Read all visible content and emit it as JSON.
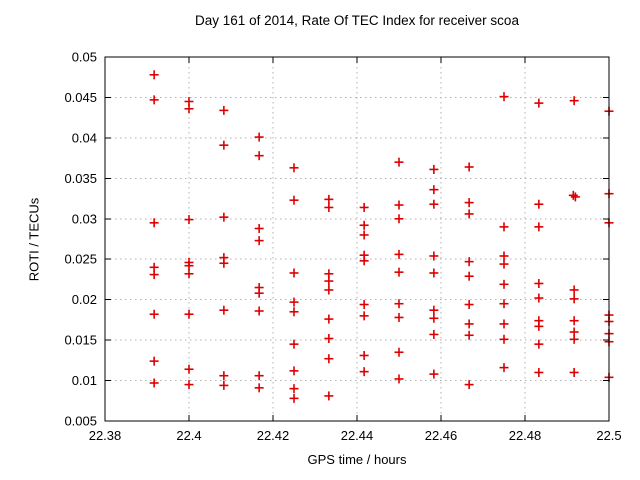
{
  "chart_data": {
    "type": "scatter",
    "title": "Day 161 of 2014, Rate Of TEC Index for receiver scoa",
    "xlabel": "GPS time / hours",
    "ylabel": "ROTI / TECUs",
    "xlim": [
      22.38,
      22.5
    ],
    "ylim": [
      0.005,
      0.05
    ],
    "xticks": [
      22.38,
      22.4,
      22.42,
      22.44,
      22.46,
      22.48,
      22.5
    ],
    "xtick_labels": [
      "22.38",
      "22.4",
      "22.42",
      "22.44",
      "22.46",
      "22.48",
      "22.5"
    ],
    "yticks": [
      0.005,
      0.01,
      0.015,
      0.02,
      0.025,
      0.03,
      0.035,
      0.04,
      0.045,
      0.05
    ],
    "ytick_labels": [
      "0.005",
      "0.01",
      "0.015",
      "0.02",
      "0.025",
      "0.03",
      "0.035",
      "0.04",
      "0.045",
      "0.05"
    ],
    "grid": true,
    "legend": "none",
    "marker": "plus",
    "marker_color": "#dd0000",
    "grid_color": "#b0b0b0",
    "border_color": "#000000",
    "series": [
      {
        "name": "ROTI",
        "points": [
          [
            22.3917,
            0.0478
          ],
          [
            22.3917,
            0.0447
          ],
          [
            22.3917,
            0.0295
          ],
          [
            22.3917,
            0.024
          ],
          [
            22.3917,
            0.0231
          ],
          [
            22.3917,
            0.0182
          ],
          [
            22.3917,
            0.0124
          ],
          [
            22.3917,
            0.0097
          ],
          [
            22.4,
            0.0445
          ],
          [
            22.4,
            0.0436
          ],
          [
            22.4,
            0.0299
          ],
          [
            22.4,
            0.0246
          ],
          [
            22.4,
            0.0242
          ],
          [
            22.4,
            0.0232
          ],
          [
            22.4,
            0.0182
          ],
          [
            22.4,
            0.0114
          ],
          [
            22.4,
            0.0095
          ],
          [
            22.4083,
            0.0434
          ],
          [
            22.4083,
            0.0391
          ],
          [
            22.4083,
            0.0302
          ],
          [
            22.4083,
            0.0252
          ],
          [
            22.4083,
            0.0245
          ],
          [
            22.4083,
            0.0187
          ],
          [
            22.4083,
            0.0106
          ],
          [
            22.4083,
            0.0094
          ],
          [
            22.4167,
            0.0401
          ],
          [
            22.4167,
            0.0378
          ],
          [
            22.4167,
            0.0288
          ],
          [
            22.4167,
            0.0273
          ],
          [
            22.4167,
            0.0215
          ],
          [
            22.4167,
            0.0208
          ],
          [
            22.4167,
            0.0186
          ],
          [
            22.4167,
            0.0106
          ],
          [
            22.4167,
            0.0091
          ],
          [
            22.425,
            0.0363
          ],
          [
            22.425,
            0.0323
          ],
          [
            22.425,
            0.0233
          ],
          [
            22.425,
            0.0197
          ],
          [
            22.425,
            0.0185
          ],
          [
            22.425,
            0.0145
          ],
          [
            22.425,
            0.0112
          ],
          [
            22.425,
            0.009
          ],
          [
            22.425,
            0.0078
          ],
          [
            22.4333,
            0.0324
          ],
          [
            22.4333,
            0.0314
          ],
          [
            22.4333,
            0.0232
          ],
          [
            22.4333,
            0.0223
          ],
          [
            22.4333,
            0.0212
          ],
          [
            22.4333,
            0.0176
          ],
          [
            22.4333,
            0.0152
          ],
          [
            22.4333,
            0.0127
          ],
          [
            22.4333,
            0.0081
          ],
          [
            22.4417,
            0.0314
          ],
          [
            22.4417,
            0.0292
          ],
          [
            22.4417,
            0.028
          ],
          [
            22.4417,
            0.0255
          ],
          [
            22.4417,
            0.0248
          ],
          [
            22.4417,
            0.0194
          ],
          [
            22.4417,
            0.018
          ],
          [
            22.4417,
            0.0131
          ],
          [
            22.4417,
            0.0111
          ],
          [
            22.45,
            0.037
          ],
          [
            22.45,
            0.0317
          ],
          [
            22.45,
            0.03
          ],
          [
            22.45,
            0.0256
          ],
          [
            22.45,
            0.0234
          ],
          [
            22.45,
            0.0195
          ],
          [
            22.45,
            0.0178
          ],
          [
            22.45,
            0.0135
          ],
          [
            22.45,
            0.0102
          ],
          [
            22.4583,
            0.0361
          ],
          [
            22.4583,
            0.0336
          ],
          [
            22.4583,
            0.0318
          ],
          [
            22.4583,
            0.0254
          ],
          [
            22.4583,
            0.0233
          ],
          [
            22.4583,
            0.0187
          ],
          [
            22.4583,
            0.0177
          ],
          [
            22.4583,
            0.0157
          ],
          [
            22.4583,
            0.0108
          ],
          [
            22.4667,
            0.0364
          ],
          [
            22.4667,
            0.032
          ],
          [
            22.4667,
            0.0306
          ],
          [
            22.4667,
            0.0247
          ],
          [
            22.4667,
            0.0229
          ],
          [
            22.4667,
            0.0194
          ],
          [
            22.4667,
            0.017
          ],
          [
            22.4667,
            0.0156
          ],
          [
            22.4667,
            0.0095
          ],
          [
            22.475,
            0.0451
          ],
          [
            22.475,
            0.029
          ],
          [
            22.475,
            0.0254
          ],
          [
            22.475,
            0.0244
          ],
          [
            22.475,
            0.0219
          ],
          [
            22.475,
            0.0195
          ],
          [
            22.475,
            0.017
          ],
          [
            22.475,
            0.0151
          ],
          [
            22.475,
            0.0116
          ],
          [
            22.4833,
            0.0443
          ],
          [
            22.4833,
            0.0318
          ],
          [
            22.4833,
            0.029
          ],
          [
            22.4833,
            0.022
          ],
          [
            22.4833,
            0.0202
          ],
          [
            22.4833,
            0.0174
          ],
          [
            22.4833,
            0.0167
          ],
          [
            22.4833,
            0.0145
          ],
          [
            22.4833,
            0.011
          ],
          [
            22.4917,
            0.0446
          ],
          [
            22.4915,
            0.0329
          ],
          [
            22.492,
            0.0327
          ],
          [
            22.4917,
            0.0212
          ],
          [
            22.4917,
            0.0201
          ],
          [
            22.4917,
            0.0174
          ],
          [
            22.4917,
            0.016
          ],
          [
            22.4917,
            0.0151
          ],
          [
            22.4917,
            0.011
          ],
          [
            22.5,
            0.0433
          ],
          [
            22.5,
            0.0331
          ],
          [
            22.5,
            0.0295
          ],
          [
            22.5,
            0.0181
          ],
          [
            22.5,
            0.0173
          ],
          [
            22.5,
            0.0158
          ],
          [
            22.5,
            0.0148
          ],
          [
            22.5,
            0.0104
          ]
        ]
      }
    ]
  }
}
